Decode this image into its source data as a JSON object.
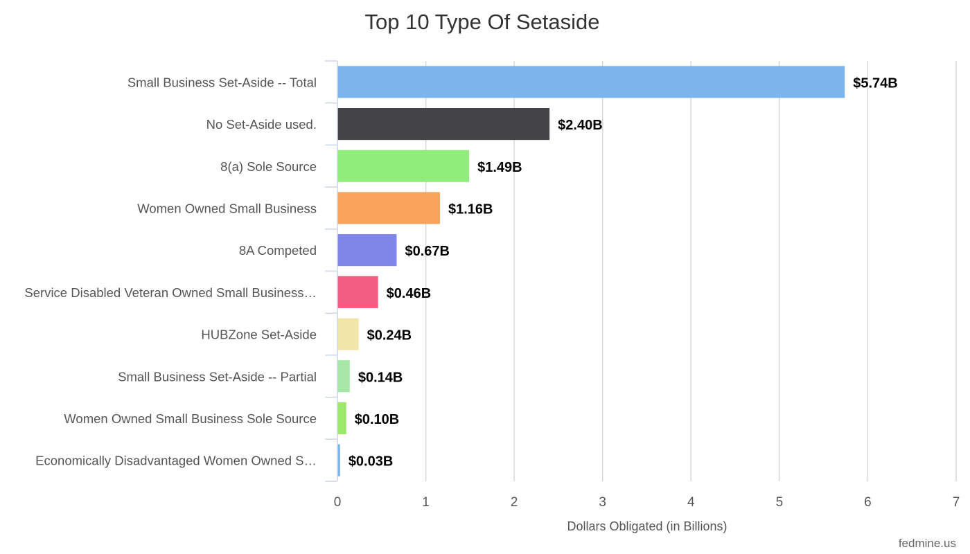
{
  "chart_data": {
    "type": "bar",
    "orientation": "horizontal",
    "title": "Top 10 Type Of Setaside",
    "xlabel": "Dollars Obligated (in Billions)",
    "ylabel": "",
    "xlim": [
      0,
      7
    ],
    "ticks": [
      "0",
      "1",
      "2",
      "3",
      "4",
      "5",
      "6",
      "7"
    ],
    "categories": [
      "Small Business Set-Aside -- Total",
      "No Set-Aside used.",
      "8(a) Sole Source",
      "Women Owned Small Business",
      "8A Competed",
      "Service Disabled Veteran Owned Small Business…",
      "HUBZone Set-Aside",
      "Small Business Set-Aside -- Partial",
      "Women Owned Small Business Sole Source",
      "Economically Disadvantaged Women Owned S…"
    ],
    "values": [
      5.74,
      2.4,
      1.49,
      1.16,
      0.67,
      0.46,
      0.24,
      0.14,
      0.1,
      0.03
    ],
    "data_labels": [
      "$5.74B",
      "$2.40B",
      "$1.49B",
      "$1.16B",
      "$0.67B",
      "$0.46B",
      "$0.24B",
      "$0.14B",
      "$0.10B",
      "$0.03B"
    ],
    "colors": [
      "#7cb5ec",
      "#434348",
      "#90ed7d",
      "#f7a35c",
      "#8085e9",
      "#f15c80",
      "#f1e6a8",
      "#a8e6a8",
      "#9be86a",
      "#7cb5ec"
    ],
    "grid": true,
    "legend": "none"
  },
  "credit": "fedmine.us"
}
